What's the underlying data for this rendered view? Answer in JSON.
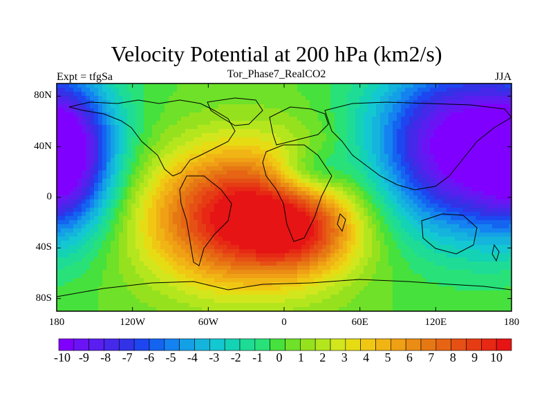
{
  "title": "Velocity Potential at 200 hPa (km2/s)",
  "subtitle_left": "Expt = tfgSa",
  "subtitle_center": "Tor_Phase7_RealCO2",
  "subtitle_right": "JJA",
  "lat_labels": [
    "80N",
    "40N",
    "0",
    "40S",
    "80S"
  ],
  "lon_labels": [
    "180",
    "120W",
    "60W",
    "0",
    "60E",
    "120E",
    "180"
  ],
  "colorbar": {
    "labels": [
      "-10",
      "-9",
      "-8",
      "-7",
      "-6",
      "-5",
      "-4",
      "-3",
      "-2",
      "-1",
      "0",
      "1",
      "2",
      "3",
      "4",
      "5",
      "6",
      "7",
      "8",
      "9",
      "10"
    ],
    "colors": [
      "#7f00ff",
      "#6a14f5",
      "#5a1ef0",
      "#4628eb",
      "#3232e6",
      "#1e46f0",
      "#1464f0",
      "#1482f0",
      "#14a0e6",
      "#14b4dc",
      "#14c8d2",
      "#14d2b4",
      "#1edc96",
      "#28e178",
      "#46e13c",
      "#6ee128",
      "#96e11e",
      "#b4e61e",
      "#d2e61e",
      "#e6dc14",
      "#f0c814",
      "#f0b414",
      "#f0a014",
      "#eb8c14",
      "#e67814",
      "#e66414",
      "#e65014",
      "#e63c14",
      "#e62814",
      "#e61414"
    ],
    "min": -10,
    "max": 10
  },
  "field": {
    "lat_range": [
      -90,
      90
    ],
    "lon_range": [
      -180,
      180
    ],
    "centers": [
      {
        "name": "divergence-americas",
        "lon": -30,
        "lat": -15,
        "amp": 10.5,
        "lon_sigma": 55,
        "lat_sigma": 38
      },
      {
        "name": "divergence-atlantic-east",
        "lon": 15,
        "lat": -30,
        "amp": 3.5,
        "lon_sigma": 30,
        "lat_sigma": 20
      },
      {
        "name": "convergence-asia-pacific",
        "lon": 140,
        "lat": 40,
        "amp": -10.5,
        "lon_sigma": 50,
        "lat_sigma": 48
      },
      {
        "name": "convergence-west-pacific",
        "lon": -170,
        "lat": 30,
        "amp": -6,
        "lon_sigma": 25,
        "lat_sigma": 40
      },
      {
        "name": "convergence-africa",
        "lon": 20,
        "lat": 20,
        "amp": -3.5,
        "lon_sigma": 22,
        "lat_sigma": 14
      }
    ]
  }
}
